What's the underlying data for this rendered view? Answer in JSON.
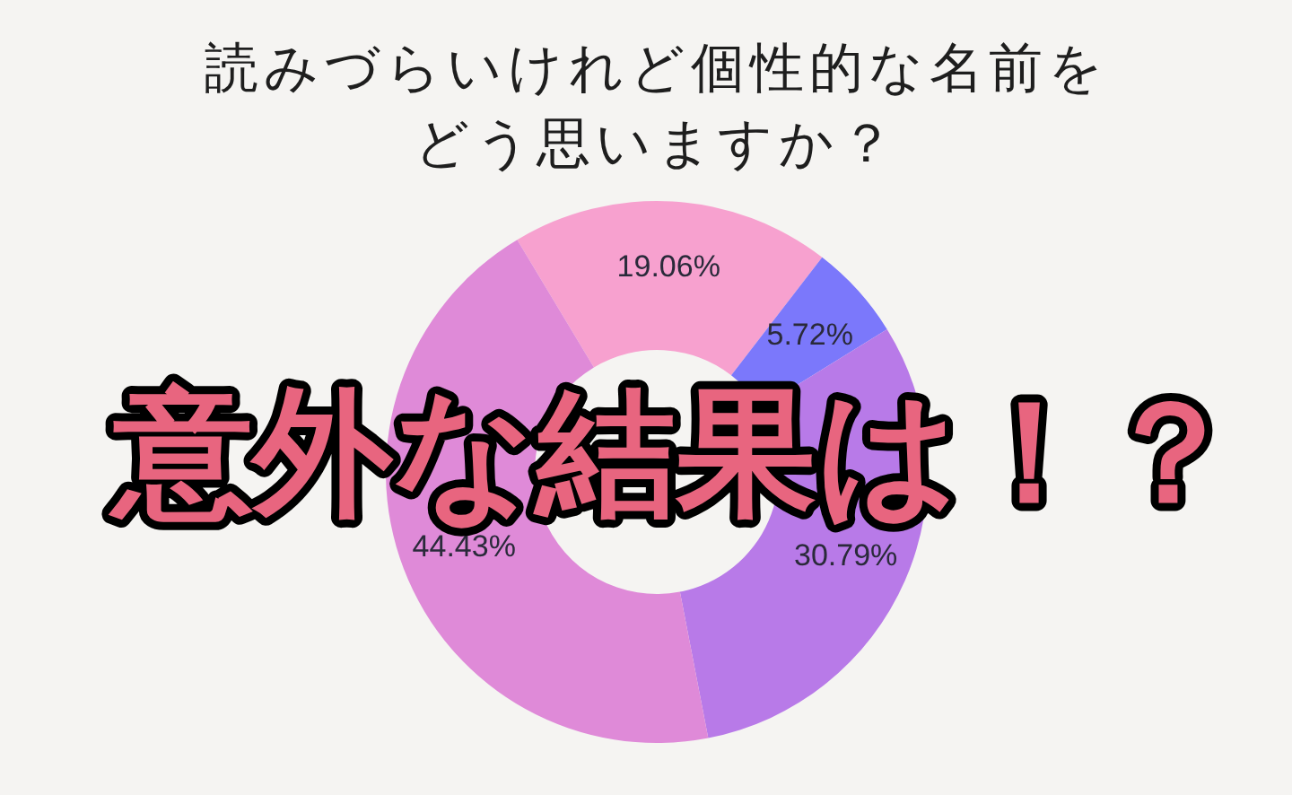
{
  "chart_data": {
    "type": "donut",
    "title": "読みづらいけれど個性的な名前をどう思いますか？",
    "categories": [
      null,
      null,
      null,
      null
    ],
    "values": [
      19.06,
      5.72,
      30.79,
      44.43
    ],
    "colors": [
      "#f7a1cf",
      "#7b78fb",
      "#b87ae8",
      "#df8ad8"
    ],
    "value_labels": [
      "19.06%",
      "5.72%",
      "30.79%",
      "44.43%"
    ],
    "annotations": [
      "意外な結果は！？"
    ]
  }
}
